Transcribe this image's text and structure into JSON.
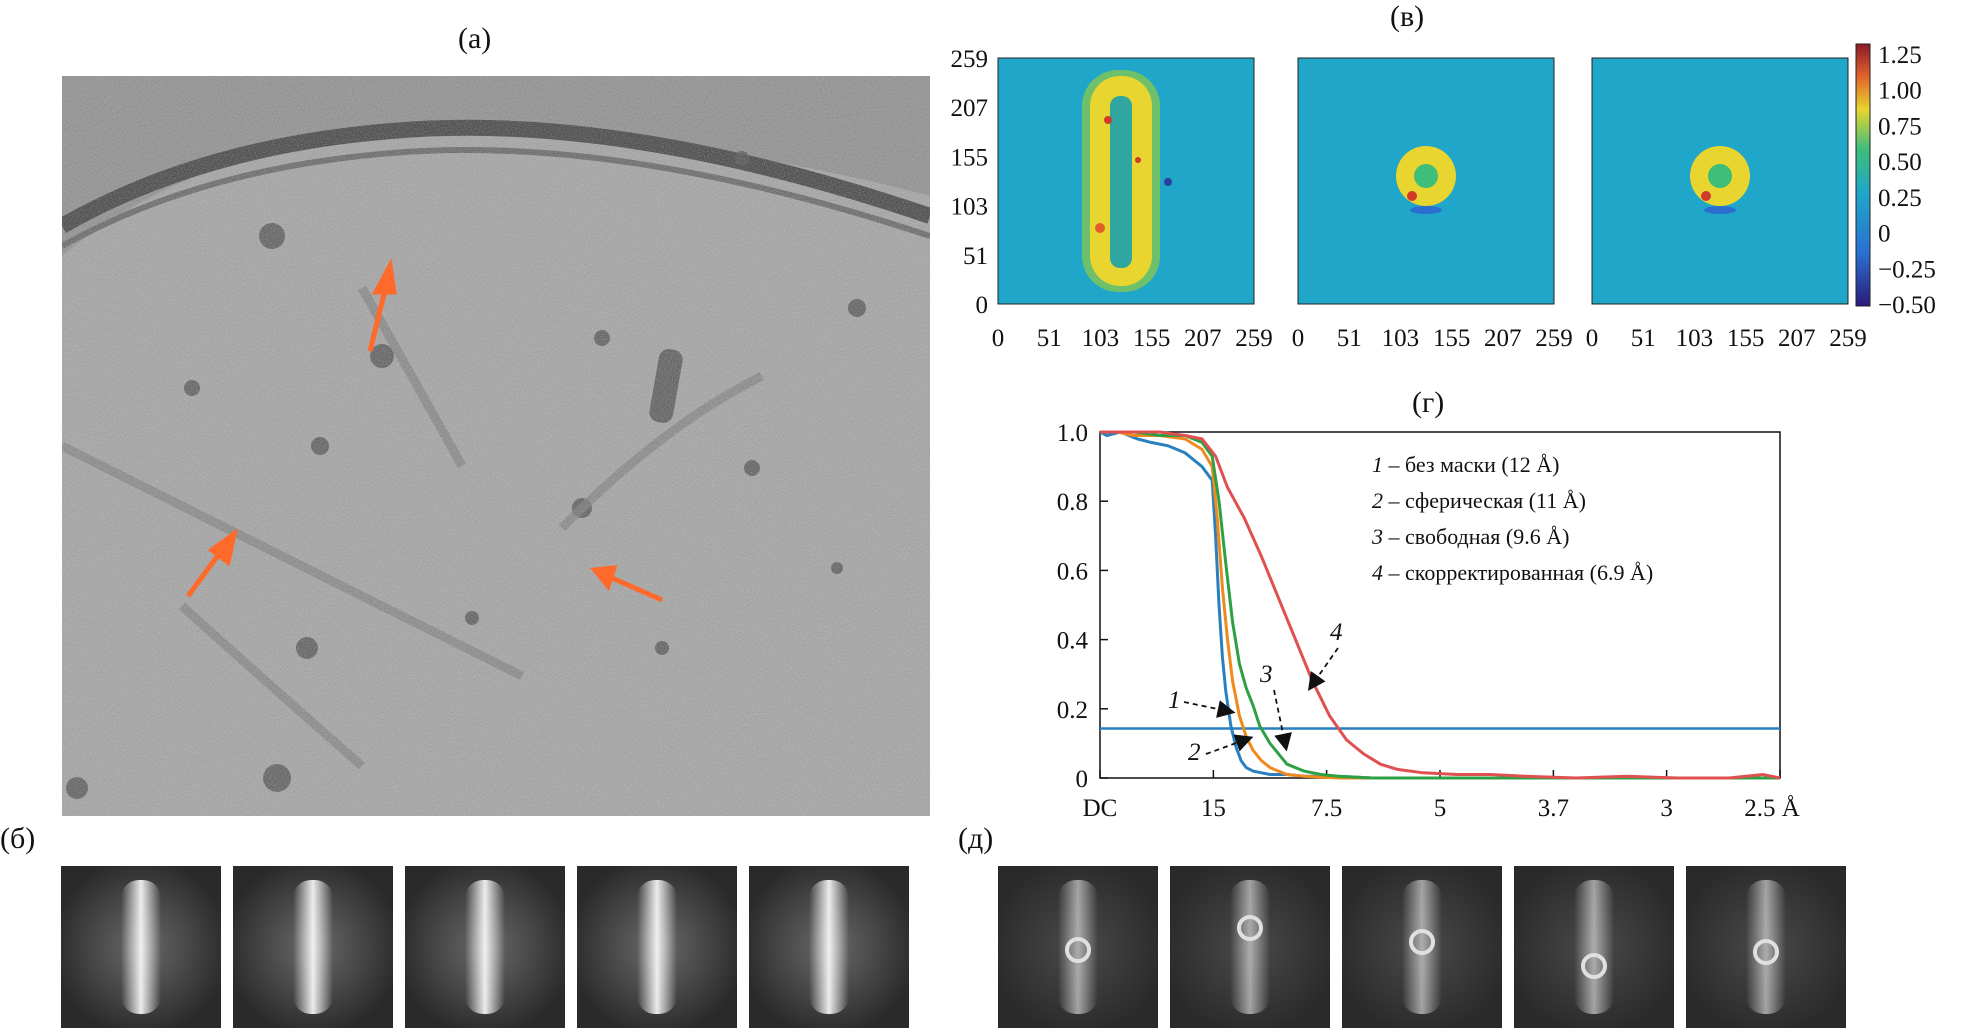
{
  "panels": {
    "a": {
      "label": "(а)"
    },
    "b": {
      "label": "(б)"
    },
    "v": {
      "label": "(в)",
      "axis_ticks": [
        "0",
        "51",
        "103",
        "155",
        "207",
        "259"
      ],
      "colorbar_ticks": [
        "1.25",
        "1.00",
        "0.75",
        "0.50",
        "0.25",
        "0",
        "−0.25",
        "−0.50"
      ],
      "colors": {
        "background": "#1fa6c9",
        "high": "#e8d530",
        "peak": "#d23a2a",
        "low": "#2a3ea0"
      }
    },
    "g": {
      "label": "(г)"
    },
    "d": {
      "label": "(д)"
    }
  },
  "chart_data": {
    "type": "line",
    "title": "",
    "xlabel": "",
    "ylabel": "",
    "x_tick_labels": [
      "DC",
      "15",
      "7.5",
      "5",
      "3.7",
      "3",
      "2.5 Å"
    ],
    "x_tick_positions": [
      0,
      0.0667,
      0.1333,
      0.2,
      0.2667,
      0.3333,
      0.4
    ],
    "y_ticks": [
      "0",
      "0.2",
      "0.4",
      "0.6",
      "0.8",
      "1.0"
    ],
    "ylim": [
      0,
      1.0
    ],
    "xlim": [
      0,
      0.4
    ],
    "threshold": 0.143,
    "legend": [
      {
        "num": "1",
        "text": " – без маски (12 Å)"
      },
      {
        "num": "2",
        "text": " – сферическая (11 Å)"
      },
      {
        "num": "3",
        "text": " – свободная (9.6 Å)"
      },
      {
        "num": "4",
        "text": " – скорректированная (6.9 Å)"
      }
    ],
    "annotations": [
      "1",
      "2",
      "3",
      "4"
    ],
    "series": [
      {
        "color": "#2a7fbf",
        "x": [
          0,
          0.004,
          0.012,
          0.022,
          0.03,
          0.04,
          0.05,
          0.06,
          0.066,
          0.068,
          0.07,
          0.072,
          0.074,
          0.077,
          0.08,
          0.083,
          0.086,
          0.09,
          0.095,
          0.1,
          0.11,
          0.12,
          0.14,
          0.16,
          0.2,
          0.25,
          0.3,
          0.35,
          0.4
        ],
        "y": [
          1.0,
          0.99,
          1.0,
          0.98,
          0.97,
          0.96,
          0.94,
          0.9,
          0.86,
          0.7,
          0.5,
          0.35,
          0.25,
          0.15,
          0.09,
          0.05,
          0.03,
          0.02,
          0.015,
          0.01,
          0.01,
          0.005,
          0.005,
          0,
          0,
          0,
          0,
          0,
          0
        ]
      },
      {
        "color": "#f08a1c",
        "x": [
          0,
          0.01,
          0.02,
          0.035,
          0.05,
          0.06,
          0.066,
          0.069,
          0.072,
          0.075,
          0.078,
          0.082,
          0.086,
          0.09,
          0.095,
          0.1,
          0.105,
          0.11,
          0.12,
          0.14,
          0.16,
          0.2,
          0.25,
          0.3,
          0.35,
          0.4
        ],
        "y": [
          1.0,
          1.0,
          0.99,
          0.99,
          0.98,
          0.95,
          0.9,
          0.75,
          0.55,
          0.4,
          0.28,
          0.18,
          0.12,
          0.08,
          0.05,
          0.03,
          0.02,
          0.01,
          0.005,
          0,
          0,
          0,
          0,
          0,
          0,
          0
        ]
      },
      {
        "color": "#2ea043",
        "x": [
          0,
          0.01,
          0.02,
          0.035,
          0.05,
          0.06,
          0.066,
          0.07,
          0.074,
          0.078,
          0.082,
          0.086,
          0.09,
          0.094,
          0.1,
          0.105,
          0.11,
          0.12,
          0.13,
          0.14,
          0.16,
          0.2,
          0.25,
          0.3,
          0.35,
          0.4
        ],
        "y": [
          1.0,
          1.0,
          1.0,
          0.99,
          0.99,
          0.97,
          0.93,
          0.8,
          0.62,
          0.45,
          0.33,
          0.26,
          0.21,
          0.15,
          0.1,
          0.07,
          0.04,
          0.02,
          0.01,
          0.005,
          0,
          0,
          0,
          0,
          0,
          0
        ]
      },
      {
        "color": "#e05050",
        "x": [
          0,
          0.01,
          0.02,
          0.035,
          0.05,
          0.06,
          0.068,
          0.075,
          0.085,
          0.095,
          0.105,
          0.115,
          0.125,
          0.135,
          0.145,
          0.155,
          0.165,
          0.175,
          0.19,
          0.21,
          0.23,
          0.25,
          0.28,
          0.31,
          0.34,
          0.37,
          0.39,
          0.4
        ],
        "y": [
          1.0,
          1.0,
          1.0,
          1.0,
          0.99,
          0.98,
          0.93,
          0.84,
          0.75,
          0.64,
          0.52,
          0.4,
          0.28,
          0.18,
          0.11,
          0.07,
          0.04,
          0.025,
          0.015,
          0.01,
          0.01,
          0.005,
          0,
          0.005,
          0,
          0,
          0.01,
          0
        ]
      }
    ]
  }
}
